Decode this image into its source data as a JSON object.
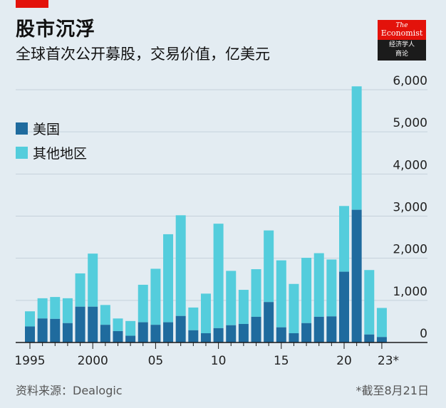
{
  "header": {
    "title": "股市沉浮",
    "subtitle": "全球首次公开募股，交易价值，亿美元"
  },
  "logo": {
    "line1": "The",
    "line2": "Economist",
    "line3": "经济学人",
    "line4": "商论"
  },
  "legend": {
    "us_label": "美国",
    "other_label": "其他地区"
  },
  "footer": {
    "source": "资料来源：Dealogic",
    "note": "*截至8月21日"
  },
  "colors": {
    "us": "#1f6b9e",
    "other": "#54cddc",
    "background": "#e3ecf2",
    "grid": "#c5d1db",
    "axis": "#1a1a1a",
    "accent": "#e3120b"
  },
  "chart_data": {
    "type": "bar",
    "stacked": true,
    "title": "股市沉浮",
    "subtitle": "全球首次公开募股，交易价值，亿美元",
    "x": [
      1995,
      1996,
      1997,
      1998,
      1999,
      2000,
      2001,
      2002,
      2003,
      2004,
      2005,
      2006,
      2007,
      2008,
      2009,
      2010,
      2011,
      2012,
      2013,
      2014,
      2015,
      2016,
      2017,
      2018,
      2019,
      2020,
      2021,
      2022,
      2023
    ],
    "x_tick_labels": [
      {
        "year": 1995,
        "label": "1995"
      },
      {
        "year": 2000,
        "label": "2000"
      },
      {
        "year": 2005,
        "label": "05"
      },
      {
        "year": 2010,
        "label": "10"
      },
      {
        "year": 2015,
        "label": "15"
      },
      {
        "year": 2020,
        "label": "20"
      },
      {
        "year": 2023,
        "label": "23*"
      }
    ],
    "y_ticks": [
      0,
      1000,
      2000,
      3000,
      4000,
      5000,
      6000
    ],
    "y_tick_labels": [
      "0",
      "1,000",
      "2,000",
      "3,000",
      "4,000",
      "5,000",
      "6,000"
    ],
    "ylim": [
      0,
      6000
    ],
    "y_axis_side": "right",
    "legend_position": "left",
    "series": [
      {
        "name": "美国",
        "values": [
          380,
          570,
          560,
          460,
          850,
          850,
          420,
          270,
          160,
          480,
          420,
          480,
          630,
          290,
          220,
          340,
          410,
          440,
          610,
          960,
          360,
          220,
          460,
          610,
          620,
          1680,
          3150,
          190,
          130
        ]
      },
      {
        "name": "其他地区",
        "values": [
          360,
          480,
          520,
          590,
          790,
          1260,
          470,
          300,
          350,
          890,
          1330,
          2090,
          2390,
          540,
          940,
          2480,
          1290,
          810,
          1130,
          1700,
          1590,
          1170,
          1550,
          1510,
          1350,
          1560,
          2930,
          1530,
          690
        ]
      }
    ]
  }
}
